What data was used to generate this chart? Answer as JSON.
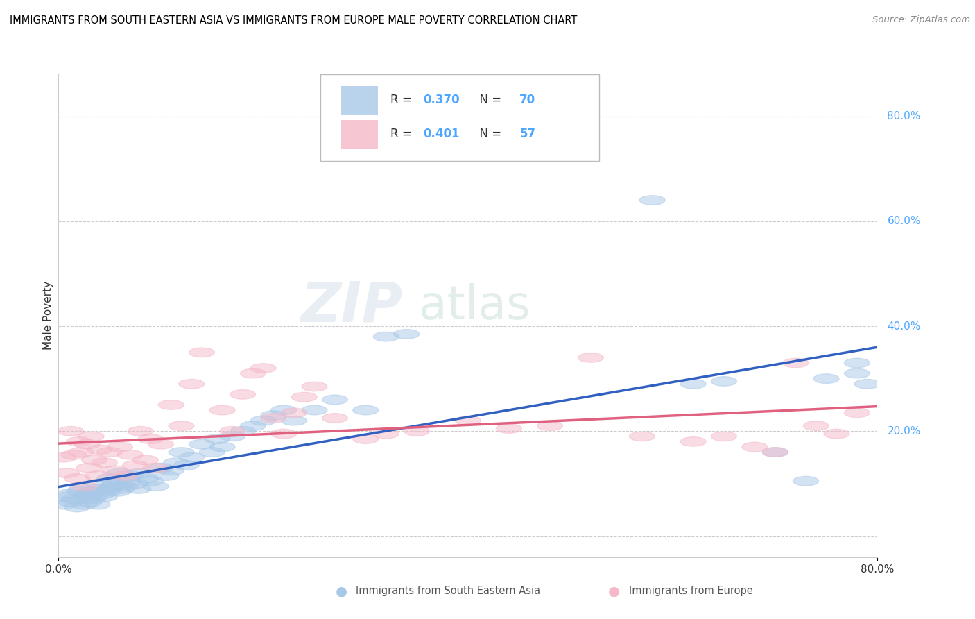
{
  "title": "IMMIGRANTS FROM SOUTH EASTERN ASIA VS IMMIGRANTS FROM EUROPE MALE POVERTY CORRELATION CHART",
  "source": "Source: ZipAtlas.com",
  "ylabel": "Male Poverty",
  "ytick_values": [
    0.0,
    0.2,
    0.4,
    0.6,
    0.8
  ],
  "ytick_labels": [
    "",
    "20.0%",
    "40.0%",
    "60.0%",
    "80.0%"
  ],
  "xlim": [
    0.0,
    0.8
  ],
  "ylim": [
    -0.04,
    0.88
  ],
  "legend_r1": "R = 0.370",
  "legend_n1": "N = 70",
  "legend_r2": "R = 0.401",
  "legend_n2": "N = 57",
  "color_asia": "#a8c8e8",
  "color_europe": "#f4b8c8",
  "color_line_asia": "#3060c0",
  "color_line_europe": "#e06080",
  "watermark1": "ZIP",
  "watermark2": "atlas",
  "asia_x": [
    0.005,
    0.008,
    0.01,
    0.012,
    0.015,
    0.018,
    0.02,
    0.022,
    0.025,
    0.025,
    0.028,
    0.03,
    0.03,
    0.032,
    0.035,
    0.038,
    0.04,
    0.04,
    0.042,
    0.045,
    0.048,
    0.05,
    0.05,
    0.052,
    0.055,
    0.058,
    0.06,
    0.06,
    0.062,
    0.065,
    0.068,
    0.07,
    0.075,
    0.078,
    0.08,
    0.085,
    0.09,
    0.095,
    0.1,
    0.105,
    0.11,
    0.115,
    0.12,
    0.125,
    0.13,
    0.14,
    0.15,
    0.155,
    0.16,
    0.17,
    0.18,
    0.19,
    0.2,
    0.21,
    0.22,
    0.23,
    0.25,
    0.27,
    0.3,
    0.32,
    0.34,
    0.58,
    0.62,
    0.65,
    0.7,
    0.73,
    0.75,
    0.78,
    0.78,
    0.79
  ],
  "asia_y": [
    0.06,
    0.075,
    0.08,
    0.065,
    0.07,
    0.055,
    0.085,
    0.09,
    0.075,
    0.06,
    0.08,
    0.065,
    0.085,
    0.07,
    0.075,
    0.06,
    0.09,
    0.1,
    0.08,
    0.075,
    0.085,
    0.09,
    0.11,
    0.095,
    0.1,
    0.085,
    0.105,
    0.12,
    0.09,
    0.095,
    0.105,
    0.115,
    0.1,
    0.09,
    0.12,
    0.11,
    0.105,
    0.095,
    0.13,
    0.115,
    0.125,
    0.14,
    0.16,
    0.135,
    0.15,
    0.175,
    0.16,
    0.185,
    0.17,
    0.19,
    0.2,
    0.21,
    0.22,
    0.23,
    0.24,
    0.22,
    0.24,
    0.26,
    0.24,
    0.38,
    0.385,
    0.64,
    0.29,
    0.295,
    0.16,
    0.105,
    0.3,
    0.31,
    0.33,
    0.29
  ],
  "europe_x": [
    0.005,
    0.008,
    0.012,
    0.015,
    0.018,
    0.02,
    0.022,
    0.025,
    0.028,
    0.03,
    0.032,
    0.035,
    0.038,
    0.04,
    0.045,
    0.05,
    0.055,
    0.06,
    0.065,
    0.07,
    0.075,
    0.08,
    0.085,
    0.09,
    0.095,
    0.1,
    0.11,
    0.12,
    0.13,
    0.14,
    0.16,
    0.17,
    0.18,
    0.19,
    0.2,
    0.21,
    0.22,
    0.23,
    0.24,
    0.25,
    0.27,
    0.3,
    0.32,
    0.35,
    0.4,
    0.44,
    0.48,
    0.52,
    0.57,
    0.62,
    0.65,
    0.68,
    0.7,
    0.72,
    0.74,
    0.76,
    0.78
  ],
  "europe_y": [
    0.15,
    0.12,
    0.2,
    0.155,
    0.11,
    0.18,
    0.16,
    0.095,
    0.175,
    0.13,
    0.19,
    0.145,
    0.115,
    0.165,
    0.14,
    0.16,
    0.125,
    0.17,
    0.115,
    0.155,
    0.135,
    0.2,
    0.145,
    0.185,
    0.13,
    0.175,
    0.25,
    0.21,
    0.29,
    0.35,
    0.24,
    0.2,
    0.27,
    0.31,
    0.32,
    0.225,
    0.195,
    0.235,
    0.265,
    0.285,
    0.225,
    0.185,
    0.195,
    0.2,
    0.22,
    0.205,
    0.21,
    0.34,
    0.19,
    0.18,
    0.19,
    0.17,
    0.16,
    0.33,
    0.21,
    0.195,
    0.235
  ]
}
